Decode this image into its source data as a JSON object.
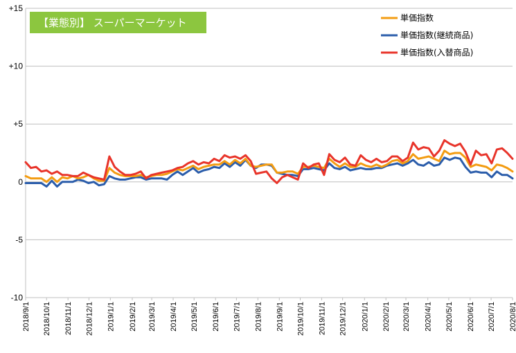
{
  "chart_data": {
    "type": "line",
    "title": "【業態別】 スーパーマーケット",
    "title_box_color": "#8cc63f",
    "ylim": [
      -10,
      15
    ],
    "yticks": [
      {
        "value": 15,
        "label": "+15"
      },
      {
        "value": 10,
        "label": "+10"
      },
      {
        "value": 5,
        "label": "+5"
      },
      {
        "value": 0,
        "label": "0"
      },
      {
        "value": -5,
        "label": "-5"
      },
      {
        "value": -10,
        "label": "-10"
      }
    ],
    "x_tick_labels": [
      "2018/9/1",
      "2018/10/1",
      "2018/11/1",
      "2018/12/1",
      "2019/1/1",
      "2019/2/1",
      "2019/3/1",
      "2019/4/1",
      "2019/5/1",
      "2019/6/1",
      "2019/7/1",
      "2019/8/1",
      "2019/9/1",
      "2019/10/1",
      "2019/11/1",
      "2019/12/1",
      "2020/1/1",
      "2020/2/1",
      "2020/3/1",
      "2020/4/1",
      "2020/5/1",
      "2020/6/1",
      "2020/7/1",
      "2020/8/1"
    ],
    "x_tick_weeks": [
      0,
      4.3,
      8.7,
      13,
      17.4,
      21.9,
      25.9,
      30.3,
      34.6,
      39,
      43.3,
      47.7,
      52.1,
      56.4,
      60.8,
      65.1,
      69.6,
      74,
      78.1,
      82.6,
      86.9,
      91.3,
      95.6,
      100
    ],
    "total_weeks": 100,
    "legend_position": "top-right",
    "grid": "horizontal",
    "series": [
      {
        "name": "単価指数",
        "color": "#f39c12",
        "values": [
          0.5,
          0.3,
          0.3,
          0.3,
          0.0,
          0.4,
          0.0,
          0.4,
          0.3,
          0.5,
          0.3,
          0.4,
          0.6,
          0.3,
          0.1,
          0.1,
          1.2,
          0.8,
          0.6,
          0.5,
          0.5,
          0.5,
          0.6,
          0.4,
          0.5,
          0.6,
          0.6,
          0.7,
          0.9,
          1.1,
          1.0,
          1.2,
          1.4,
          1.1,
          1.3,
          1.4,
          1.5,
          1.5,
          1.8,
          1.5,
          1.9,
          1.6,
          2.0,
          1.4,
          1.3,
          1.4,
          1.5,
          1.5,
          0.8,
          0.8,
          0.9,
          0.9,
          0.7,
          1.3,
          1.3,
          1.4,
          1.3,
          1.2,
          2.0,
          1.6,
          1.3,
          1.6,
          1.3,
          1.3,
          1.6,
          1.4,
          1.3,
          1.5,
          1.3,
          1.5,
          1.8,
          1.9,
          1.6,
          1.8,
          2.4,
          2.0,
          2.1,
          2.2,
          2.0,
          1.8,
          2.7,
          2.4,
          2.5,
          2.5,
          2.1,
          1.3,
          1.5,
          1.4,
          1.3,
          1.0,
          1.5,
          1.4,
          1.2,
          0.9
        ]
      },
      {
        "name": "単価指数(継続商品)",
        "color": "#2a5caa",
        "values": [
          -0.1,
          -0.1,
          -0.1,
          -0.1,
          -0.4,
          0.1,
          -0.4,
          0.0,
          0.0,
          0.0,
          0.2,
          0.1,
          -0.1,
          0.0,
          -0.3,
          -0.2,
          0.5,
          0.3,
          0.2,
          0.2,
          0.3,
          0.4,
          0.4,
          0.2,
          0.3,
          0.3,
          0.3,
          0.2,
          0.6,
          0.9,
          0.6,
          0.9,
          1.2,
          0.8,
          1.0,
          1.1,
          1.3,
          1.2,
          1.6,
          1.3,
          1.7,
          1.4,
          1.9,
          1.4,
          1.2,
          1.5,
          1.5,
          1.4,
          0.8,
          0.7,
          0.6,
          0.6,
          0.5,
          1.1,
          1.1,
          1.2,
          1.1,
          1.0,
          1.6,
          1.2,
          1.1,
          1.3,
          1.0,
          1.1,
          1.2,
          1.1,
          1.1,
          1.2,
          1.2,
          1.4,
          1.5,
          1.6,
          1.4,
          1.6,
          1.9,
          1.5,
          1.4,
          1.7,
          1.4,
          1.5,
          2.1,
          1.9,
          2.1,
          2.0,
          1.3,
          0.8,
          0.9,
          0.8,
          0.8,
          0.4,
          0.9,
          0.6,
          0.6,
          0.3
        ]
      },
      {
        "name": "単価指数(入替商品)",
        "color": "#e8342a",
        "values": [
          1.7,
          1.2,
          1.3,
          0.9,
          1.0,
          0.7,
          0.9,
          0.6,
          0.6,
          0.5,
          0.5,
          0.8,
          0.6,
          0.4,
          0.3,
          0.2,
          2.2,
          1.3,
          0.9,
          0.6,
          0.6,
          0.7,
          0.9,
          0.3,
          0.6,
          0.7,
          0.8,
          0.9,
          1.0,
          1.2,
          1.3,
          1.6,
          1.8,
          1.5,
          1.7,
          1.6,
          2.0,
          1.8,
          2.3,
          2.1,
          2.2,
          2.0,
          2.3,
          1.8,
          0.7,
          0.8,
          0.9,
          0.3,
          -0.1,
          0.4,
          0.6,
          0.4,
          0.2,
          1.6,
          1.2,
          1.5,
          1.6,
          0.6,
          2.4,
          1.9,
          1.7,
          2.1,
          1.5,
          1.4,
          2.3,
          1.9,
          1.7,
          2.0,
          1.7,
          1.8,
          2.2,
          2.2,
          1.8,
          2.1,
          3.4,
          2.8,
          3.0,
          2.9,
          2.2,
          2.7,
          3.6,
          3.3,
          3.1,
          3.3,
          2.6,
          1.5,
          2.7,
          2.3,
          2.4,
          1.6,
          2.8,
          2.9,
          2.5,
          2.0
        ]
      }
    ]
  }
}
